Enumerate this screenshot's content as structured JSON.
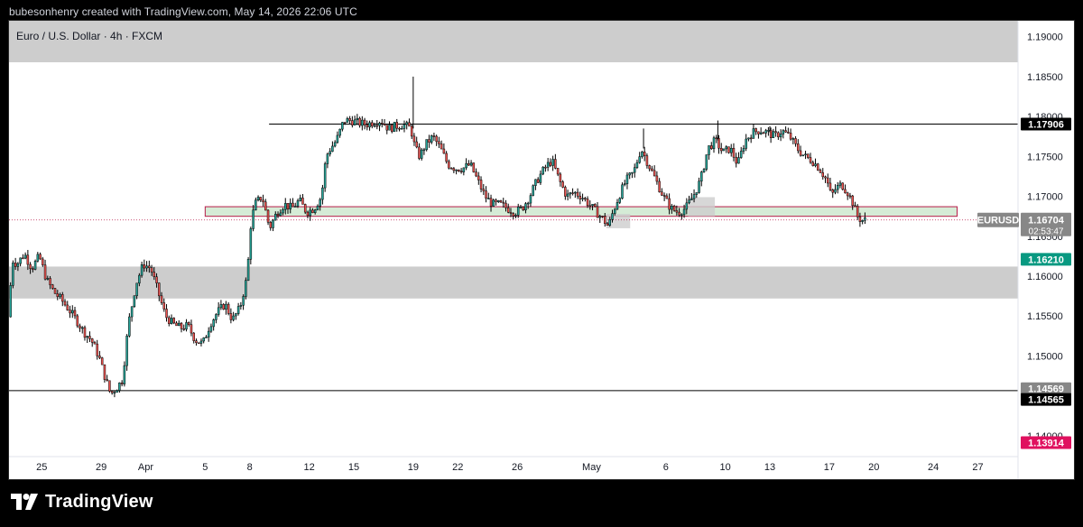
{
  "header": {
    "created_by": "bubesonhenry created with TradingView.com, May 14, 2026 22:06 UTC"
  },
  "brand": {
    "name": "TradingView",
    "icon": "tradingview-logo-icon"
  },
  "colors": {
    "up": "#26a69a",
    "down": "#ef5350",
    "candle": "#000000",
    "zone_gray": "#cdcdcd",
    "zone_green": "#d5ebd6",
    "zone_green_border": "#b71c4a",
    "label_black": "#000000",
    "label_gray": "#878787",
    "label_green": "#089981",
    "label_red": "#e0115f"
  },
  "chart_data": {
    "type": "candlestick",
    "title": "Euro / U.S. Dollar · 4h · FXCM",
    "symbol": "EURUSD",
    "ylim": [
      1.1375,
      1.192
    ],
    "y_ticks": [
      "1.19000",
      "1.18500",
      "1.18000",
      "1.17500",
      "1.17000",
      "1.16500",
      "1.16000",
      "1.15500",
      "1.15000",
      "1.14500",
      "1.14000"
    ],
    "x_ticks": [
      {
        "label": "25",
        "day": 0
      },
      {
        "label": "29",
        "day": 4
      },
      {
        "label": "Apr",
        "day": 7
      },
      {
        "label": "5",
        "day": 11
      },
      {
        "label": "8",
        "day": 14
      },
      {
        "label": "12",
        "day": 18
      },
      {
        "label": "15",
        "day": 21
      },
      {
        "label": "19",
        "day": 25
      },
      {
        "label": "22",
        "day": 28
      },
      {
        "label": "26",
        "day": 32
      },
      {
        "label": "May",
        "day": 37
      },
      {
        "label": "6",
        "day": 42
      },
      {
        "label": "10",
        "day": 46
      },
      {
        "label": "13",
        "day": 49
      },
      {
        "label": "17",
        "day": 53
      },
      {
        "label": "20",
        "day": 56
      },
      {
        "label": "24",
        "day": 60
      },
      {
        "label": "27",
        "day": 63
      }
    ],
    "x_day_range": [
      -2.2,
      65.7
    ],
    "price_path": [
      [
        -2.1,
        1.1549
      ],
      [
        -1.8,
        1.162
      ],
      [
        -1.5,
        1.1615
      ],
      [
        -1.0,
        1.1628
      ],
      [
        -0.5,
        1.161
      ],
      [
        0.0,
        1.1625
      ],
      [
        0.5,
        1.1595
      ],
      [
        1.0,
        1.158
      ],
      [
        1.5,
        1.157
      ],
      [
        2.0,
        1.1558
      ],
      [
        2.5,
        1.1545
      ],
      [
        3.0,
        1.153
      ],
      [
        3.5,
        1.152
      ],
      [
        4.0,
        1.15
      ],
      [
        4.4,
        1.1475
      ],
      [
        4.8,
        1.1452
      ],
      [
        5.2,
        1.146
      ],
      [
        5.6,
        1.147
      ],
      [
        6.0,
        1.154
      ],
      [
        6.5,
        1.159
      ],
      [
        7.0,
        1.1615
      ],
      [
        7.5,
        1.161
      ],
      [
        8.0,
        1.158
      ],
      [
        8.5,
        1.155
      ],
      [
        9.0,
        1.154
      ],
      [
        9.5,
        1.1535
      ],
      [
        10.0,
        1.1538
      ],
      [
        10.5,
        1.152
      ],
      [
        11.0,
        1.1515
      ],
      [
        11.5,
        1.154
      ],
      [
        12.0,
        1.1555
      ],
      [
        12.5,
        1.1565
      ],
      [
        13.0,
        1.1545
      ],
      [
        13.5,
        1.156
      ],
      [
        14.0,
        1.16
      ],
      [
        14.2,
        1.166
      ],
      [
        14.5,
        1.169
      ],
      [
        15.0,
        1.17
      ],
      [
        15.5,
        1.166
      ],
      [
        16.0,
        1.168
      ],
      [
        16.5,
        1.169
      ],
      [
        17.0,
        1.1685
      ],
      [
        17.5,
        1.1695
      ],
      [
        18.0,
        1.168
      ],
      [
        18.5,
        1.1685
      ],
      [
        19.0,
        1.17
      ],
      [
        19.3,
        1.175
      ],
      [
        19.6,
        1.176
      ],
      [
        20.0,
        1.177
      ],
      [
        20.5,
        1.1795
      ],
      [
        21.0,
        1.1795
      ],
      [
        21.5,
        1.1792
      ],
      [
        22.0,
        1.179
      ],
      [
        22.5,
        1.1793
      ],
      [
        23.0,
        1.1795
      ],
      [
        23.5,
        1.1785
      ],
      [
        24.0,
        1.1788
      ],
      [
        24.5,
        1.179
      ],
      [
        25.0,
        1.1785
      ],
      [
        25.3,
        1.176
      ],
      [
        25.6,
        1.175
      ],
      [
        26.0,
        1.1765
      ],
      [
        26.5,
        1.1775
      ],
      [
        27.0,
        1.176
      ],
      [
        27.5,
        1.174
      ],
      [
        28.0,
        1.1735
      ],
      [
        28.5,
        1.1735
      ],
      [
        29.0,
        1.174
      ],
      [
        29.5,
        1.172
      ],
      [
        30.0,
        1.17
      ],
      [
        30.5,
        1.169
      ],
      [
        31.0,
        1.169
      ],
      [
        31.5,
        1.1685
      ],
      [
        32.0,
        1.168
      ],
      [
        32.5,
        1.1685
      ],
      [
        33.0,
        1.17
      ],
      [
        33.5,
        1.172
      ],
      [
        34.0,
        1.1735
      ],
      [
        34.5,
        1.1745
      ],
      [
        35.0,
        1.172
      ],
      [
        35.5,
        1.17
      ],
      [
        36.0,
        1.1705
      ],
      [
        36.5,
        1.17
      ],
      [
        37.0,
        1.169
      ],
      [
        37.5,
        1.168
      ],
      [
        38.0,
        1.167
      ],
      [
        38.3,
        1.1662
      ],
      [
        38.6,
        1.168
      ],
      [
        39.0,
        1.17
      ],
      [
        39.5,
        1.172
      ],
      [
        40.0,
        1.173
      ],
      [
        40.5,
        1.176
      ],
      [
        41.0,
        1.174
      ],
      [
        41.5,
        1.172
      ],
      [
        42.0,
        1.17
      ],
      [
        42.5,
        1.1685
      ],
      [
        43.0,
        1.168
      ],
      [
        43.5,
        1.1685
      ],
      [
        44.0,
        1.17
      ],
      [
        44.5,
        1.172
      ],
      [
        45.0,
        1.176
      ],
      [
        45.5,
        1.177
      ],
      [
        46.0,
        1.1755
      ],
      [
        46.5,
        1.176
      ],
      [
        47.0,
        1.174
      ],
      [
        47.5,
        1.177
      ],
      [
        48.0,
        1.178
      ],
      [
        48.5,
        1.1783
      ],
      [
        49.0,
        1.178
      ],
      [
        49.5,
        1.1775
      ],
      [
        50.0,
        1.1782
      ],
      [
        50.5,
        1.1775
      ],
      [
        51.0,
        1.176
      ],
      [
        51.5,
        1.175
      ],
      [
        52.0,
        1.1745
      ],
      [
        52.5,
        1.1735
      ],
      [
        53.0,
        1.172
      ],
      [
        53.3,
        1.17
      ],
      [
        53.6,
        1.171
      ],
      [
        54.0,
        1.1715
      ],
      [
        54.4,
        1.1705
      ],
      [
        54.8,
        1.169
      ],
      [
        55.0,
        1.1676
      ],
      [
        55.2,
        1.1672
      ],
      [
        55.4,
        1.167
      ]
    ],
    "spikes": [
      {
        "day": 25.0,
        "high": 1.185
      },
      {
        "day": 40.5,
        "high": 1.1785
      },
      {
        "day": 45.5,
        "high": 1.1795
      },
      {
        "day": 49.0,
        "high": 1.1788
      }
    ],
    "zones": [
      {
        "name": "supply-zone-top",
        "color": "gray",
        "from_day": -2.2,
        "to_day": 63.0,
        "y_from": 1.1868,
        "y_to": 1.192,
        "fill_to_axis": true
      },
      {
        "name": "demand-zone",
        "color": "gray",
        "from_day": -2.2,
        "to_day": 63.0,
        "y_from": 1.1572,
        "y_to": 1.1612,
        "fill_to_axis": true
      },
      {
        "name": "key-level-zone",
        "color": "green",
        "from_day": 11.0,
        "to_day": 61.6,
        "y_from": 1.1675,
        "y_to": 1.1687
      },
      {
        "name": "small-box-1",
        "color": "gray",
        "from_day": 38.0,
        "to_day": 39.6,
        "y_from": 1.166,
        "y_to": 1.1678
      },
      {
        "name": "small-box-2",
        "color": "gray",
        "from_day": 43.5,
        "to_day": 45.3,
        "y_from": 1.1675,
        "y_to": 1.1699
      }
    ],
    "lines": [
      {
        "name": "resistance-line",
        "y": 1.17906,
        "from_day": 15.3,
        "to_day": 65.7
      },
      {
        "name": "support-line",
        "y": 1.14565,
        "from_day": -2.2,
        "to_day": 65.7
      }
    ],
    "current_price_line": {
      "y": 1.16704
    },
    "price_labels": [
      {
        "name": "resistance-label",
        "text": "1.17906",
        "y": 1.17906,
        "color": "label_black"
      },
      {
        "name": "support-label-1",
        "text": "1.14569",
        "y": 1.1459,
        "color": "label_gray"
      },
      {
        "name": "support-label-2",
        "text": "1.14565",
        "y": 1.14455,
        "color": "label_black"
      },
      {
        "name": "green-level-label",
        "text": "1.16210",
        "y": 1.1621,
        "color": "label_green"
      },
      {
        "name": "low-level-label",
        "text": "1.13914",
        "y": 1.13914,
        "color": "label_red"
      }
    ],
    "current_label": {
      "symbol": "EURUSD",
      "price": "1.16704",
      "countdown": "02:53:47"
    }
  }
}
